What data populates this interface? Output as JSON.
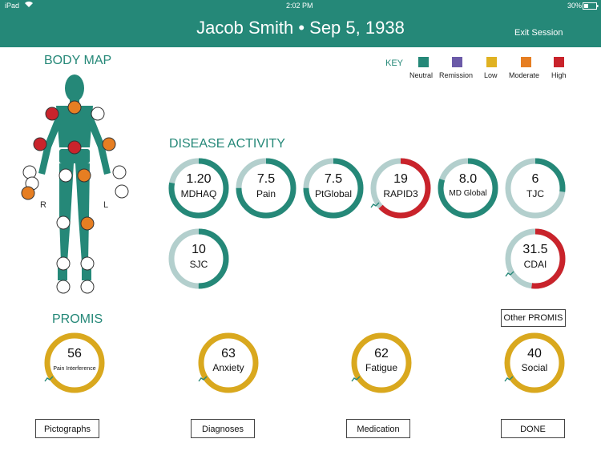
{
  "status": {
    "device": "iPad",
    "time": "2:02 PM",
    "battery": "30%"
  },
  "header": {
    "title": "Jacob Smith • Sep 5, 1938",
    "exit_label": "Exit Session"
  },
  "colors": {
    "teal": "#258878",
    "light_ring": "#b3cfcd",
    "red": "#c9232b",
    "gold": "#d9a81e",
    "remission": "#6b5aa8",
    "low": "#e0b222",
    "moderate": "#e67e22"
  },
  "body_map": {
    "title": "BODY MAP",
    "right_label": "R",
    "left_label": "L"
  },
  "key": {
    "label": "KEY",
    "items": [
      {
        "name": "Neutral",
        "color": "#258878"
      },
      {
        "name": "Remission",
        "color": "#6b5aa8"
      },
      {
        "name": "Low",
        "color": "#e0b222"
      },
      {
        "name": "Moderate",
        "color": "#e67e22"
      },
      {
        "name": "High",
        "color": "#c9232b"
      }
    ]
  },
  "disease_activity": {
    "title": "DISEASE ACTIVITY",
    "metrics": [
      {
        "value": "1.20",
        "label": "MDHAQ",
        "fraction": 0.78,
        "color": "#258878",
        "trend": false
      },
      {
        "value": "7.5",
        "label": "Pain",
        "fraction": 0.75,
        "color": "#258878",
        "trend": false
      },
      {
        "value": "7.5",
        "label": "PtGlobal",
        "fraction": 0.75,
        "color": "#258878",
        "trend": false
      },
      {
        "value": "19",
        "label": "RAPID3",
        "fraction": 0.63,
        "color": "#c9232b",
        "trend": true
      },
      {
        "value": "8.0",
        "label": "MD Global",
        "fraction": 0.8,
        "color": "#258878",
        "trend": false
      },
      {
        "value": "6",
        "label": "TJC",
        "fraction": 0.27,
        "color": "#258878",
        "trend": false
      },
      {
        "value": "10",
        "label": "SJC",
        "fraction": 0.5,
        "color": "#258878",
        "trend": false
      },
      {
        "value": "31.5",
        "label": "CDAI",
        "fraction": 0.52,
        "color": "#c9232b",
        "trend": true
      }
    ]
  },
  "promis": {
    "title": "PROMIS",
    "other_label": "Other PROMIS",
    "metrics": [
      {
        "value": "56",
        "label": "Pain Interference"
      },
      {
        "value": "63",
        "label": "Anxiety"
      },
      {
        "value": "62",
        "label": "Fatigue"
      },
      {
        "value": "40",
        "label": "Social"
      }
    ]
  },
  "buttons": {
    "pictographs": "Pictographs",
    "diagnoses": "Diagnoses",
    "medication": "Medication",
    "done": "DONE"
  }
}
